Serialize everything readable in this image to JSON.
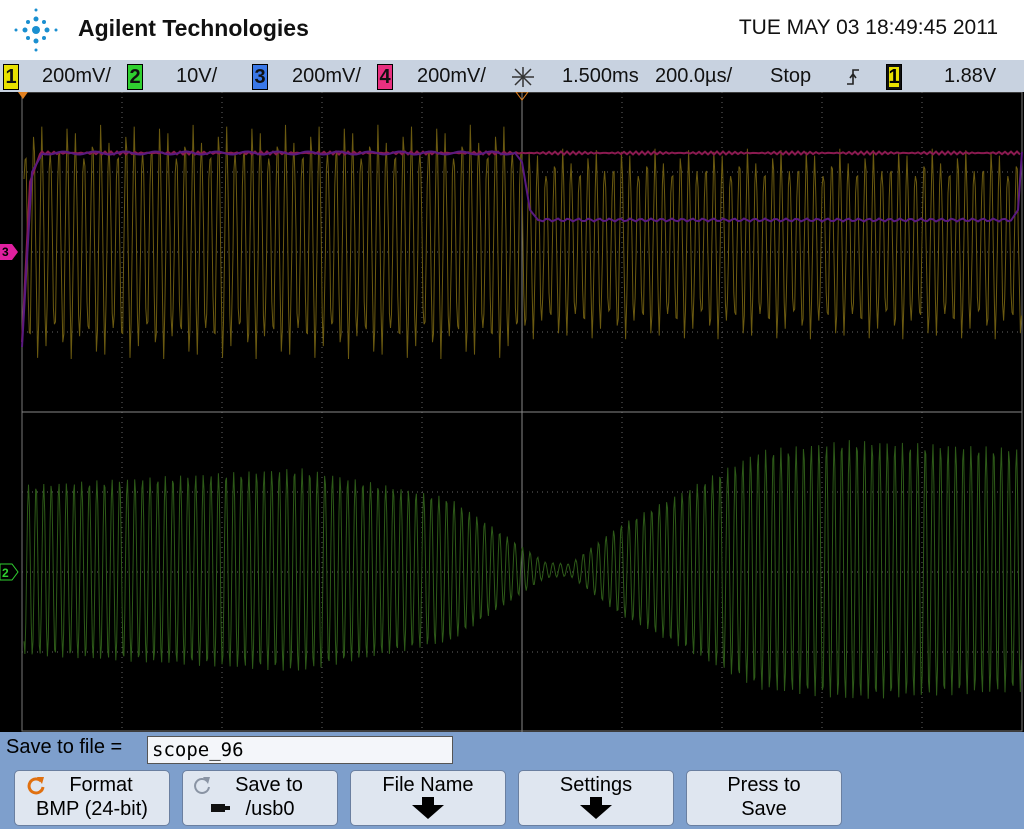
{
  "header": {
    "brand": "Agilent Technologies",
    "datetime": "TUE MAY 03 18:49:45 2011"
  },
  "status_bar": {
    "channels": [
      {
        "number": "1",
        "scale": "200mV/"
      },
      {
        "number": "2",
        "scale": "10V/"
      },
      {
        "number": "3",
        "scale": "200mV/"
      },
      {
        "number": "4",
        "scale": "200mV/"
      }
    ],
    "trigger_delay": "1.500ms",
    "timebase": "200.0µs/",
    "run_state": "Stop",
    "trigger_source": "1",
    "trigger_level": "1.88V"
  },
  "markers": {
    "channel_3": "3",
    "channel_2": "2"
  },
  "save_bar": {
    "label": "Save to file =",
    "filename": "scope_96"
  },
  "softkeys": [
    {
      "line1": "Format",
      "line2": "BMP (24-bit)"
    },
    {
      "line1": "Save to",
      "line2": "/usb0"
    },
    {
      "line1": "File Name"
    },
    {
      "line1": "Settings"
    },
    {
      "line1": "Press to",
      "line2": "Save"
    }
  ]
}
